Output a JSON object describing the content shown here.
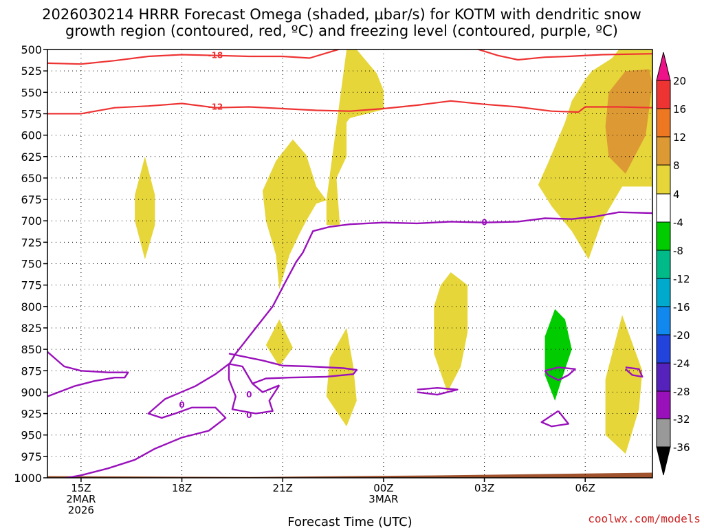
{
  "title": {
    "line1": "2026030214 HRRR Forecast Omega (shaded, μbar/s) for KOTM with dendritic snow",
    "line2": "growth region (contoured, red, ºC) and freezing level (contoured, purple, ºC)"
  },
  "credit": "coolwx.com/models",
  "chart_data": {
    "type": "heatmap",
    "xlabel": "Forecast Time (UTC)",
    "ylabel": "",
    "y_ticks": [
      "500",
      "525",
      "550",
      "575",
      "600",
      "625",
      "650",
      "675",
      "700",
      "725",
      "750",
      "775",
      "800",
      "825",
      "850",
      "875",
      "900",
      "925",
      "950",
      "975",
      "1000"
    ],
    "x_ticks": [
      {
        "hour": 15,
        "lines": [
          "15Z",
          "2MAR",
          "2026"
        ]
      },
      {
        "hour": 18,
        "lines": [
          "18Z"
        ]
      },
      {
        "hour": 21,
        "lines": [
          "21Z"
        ]
      },
      {
        "hour": 24,
        "lines": [
          "00Z",
          "3MAR"
        ]
      },
      {
        "hour": 27,
        "lines": [
          "03Z"
        ]
      },
      {
        "hour": 30,
        "lines": [
          "06Z"
        ]
      }
    ],
    "xlim": [
      14,
      32
    ],
    "ylim": [
      1000,
      500
    ],
    "grid": true,
    "colorbar": {
      "labels": [
        "20",
        "16",
        "12",
        "8",
        "4",
        "-4",
        "-8",
        "-12",
        "-16",
        "-20",
        "-24",
        "-28",
        "-32",
        "-36"
      ],
      "bands": [
        {
          "from": 20,
          "to": 24,
          "color": "#ee1188"
        },
        {
          "from": 16,
          "to": 20,
          "color": "#ee3333"
        },
        {
          "from": 12,
          "to": 16,
          "color": "#ee7722"
        },
        {
          "from": 8,
          "to": 12,
          "color": "#dd9933"
        },
        {
          "from": 4,
          "to": 8,
          "color": "#e6d63a"
        },
        {
          "from": -4,
          "to": 4,
          "color": "#ffffff"
        },
        {
          "from": -8,
          "to": -4,
          "color": "#00cc00"
        },
        {
          "from": -12,
          "to": -8,
          "color": "#00bb88"
        },
        {
          "from": -16,
          "to": -12,
          "color": "#00aacc"
        },
        {
          "from": -20,
          "to": -16,
          "color": "#1188ee"
        },
        {
          "from": -24,
          "to": -20,
          "color": "#2244dd"
        },
        {
          "from": -28,
          "to": -24,
          "color": "#5522bb"
        },
        {
          "from": -32,
          "to": -28,
          "color": "#9911bb"
        },
        {
          "from": -36,
          "to": -32,
          "color": "#999999"
        },
        {
          "from": -40,
          "to": -36,
          "color": "#000000"
        }
      ]
    },
    "shaded_regions": [
      {
        "name": "omega-4-to-8",
        "color": "#e6d63a",
        "value_range": [
          4,
          8
        ],
        "points": [
          [
            16.9,
            625
          ],
          [
            17.2,
            670
          ],
          [
            17.2,
            705
          ],
          [
            16.9,
            745
          ],
          [
            16.6,
            700
          ],
          [
            16.6,
            670
          ]
        ]
      },
      {
        "name": "omega-4-to-8",
        "color": "#e6d63a",
        "value_range": [
          4,
          8
        ],
        "points": [
          [
            22.9,
            500
          ],
          [
            23.2,
            500
          ],
          [
            23.8,
            528
          ],
          [
            24.0,
            548
          ],
          [
            24.0,
            570
          ],
          [
            23.0,
            580
          ],
          [
            22.9,
            585
          ],
          [
            22.9,
            625
          ],
          [
            22.6,
            650
          ],
          [
            22.7,
            705
          ],
          [
            22.3,
            705
          ],
          [
            22.3,
            676
          ],
          [
            22.0,
            660
          ],
          [
            21.7,
            623
          ],
          [
            21.3,
            605
          ],
          [
            20.8,
            630
          ],
          [
            20.4,
            665
          ],
          [
            20.5,
            700
          ],
          [
            20.8,
            740
          ],
          [
            20.9,
            780
          ],
          [
            21.2,
            740
          ],
          [
            21.5,
            715
          ],
          [
            21.7,
            700
          ],
          [
            22.0,
            680
          ],
          [
            22.3,
            676
          ]
        ]
      },
      {
        "name": "omega-4-to-8",
        "color": "#e6d63a",
        "value_range": [
          4,
          8
        ],
        "points": [
          [
            20.9,
            815
          ],
          [
            21.3,
            848
          ],
          [
            20.9,
            870
          ],
          [
            20.5,
            845
          ]
        ]
      },
      {
        "name": "omega-4-to-8",
        "color": "#e6d63a",
        "value_range": [
          4,
          8
        ],
        "points": [
          [
            22.9,
            825
          ],
          [
            23.1,
            870
          ],
          [
            23.2,
            910
          ],
          [
            22.9,
            940
          ],
          [
            22.3,
            905
          ],
          [
            22.4,
            860
          ]
        ]
      },
      {
        "name": "omega-4-to-8",
        "color": "#e6d63a",
        "value_range": [
          4,
          8
        ],
        "points": [
          [
            26.0,
            760
          ],
          [
            26.5,
            775
          ],
          [
            26.5,
            830
          ],
          [
            26.3,
            870
          ],
          [
            25.9,
            900
          ],
          [
            25.5,
            855
          ],
          [
            25.5,
            800
          ],
          [
            25.7,
            775
          ]
        ]
      },
      {
        "name": "omega-4-to-8",
        "color": "#e6d63a",
        "value_range": [
          4,
          8
        ],
        "points": [
          [
            30.2,
            525
          ],
          [
            30.8,
            510
          ],
          [
            31.0,
            500
          ],
          [
            32.0,
            500
          ],
          [
            32.0,
            660
          ],
          [
            31.1,
            660
          ],
          [
            30.5,
            700
          ],
          [
            30.1,
            745
          ],
          [
            29.6,
            712
          ],
          [
            29.0,
            683
          ],
          [
            28.6,
            658
          ],
          [
            28.9,
            632
          ],
          [
            29.4,
            585
          ],
          [
            29.6,
            560
          ],
          [
            30.0,
            535
          ]
        ]
      },
      {
        "name": "omega-4-to-8",
        "color": "#e6d63a",
        "value_range": [
          4,
          8
        ],
        "points": [
          [
            31.1,
            810
          ],
          [
            31.7,
            875
          ],
          [
            31.6,
            920
          ],
          [
            31.2,
            972
          ],
          [
            30.6,
            950
          ],
          [
            30.6,
            885
          ]
        ]
      },
      {
        "name": "omega-8-to-12",
        "color": "#dd9933",
        "value_range": [
          8,
          12
        ],
        "points": [
          [
            31.9,
            523
          ],
          [
            32.0,
            540
          ],
          [
            31.8,
            600
          ],
          [
            31.2,
            645
          ],
          [
            30.7,
            625
          ],
          [
            30.6,
            590
          ],
          [
            30.7,
            550
          ],
          [
            31.2,
            525
          ]
        ]
      },
      {
        "name": "omega-minus-4-to-minus-8",
        "color": "#00cc00",
        "value_range": [
          -8,
          -4
        ],
        "points": [
          [
            29.1,
            803
          ],
          [
            29.4,
            815
          ],
          [
            29.6,
            850
          ],
          [
            29.3,
            885
          ],
          [
            29.1,
            910
          ],
          [
            28.8,
            880
          ],
          [
            28.8,
            835
          ]
        ]
      }
    ],
    "dgz_contours": [
      {
        "label": "-18",
        "color": "#ee3333",
        "points": [
          [
            14.0,
            516
          ],
          [
            15.0,
            517
          ],
          [
            16.0,
            513
          ],
          [
            17.0,
            508
          ],
          [
            18.0,
            506
          ],
          [
            19.0,
            507
          ],
          [
            20.0,
            508
          ],
          [
            21.0,
            508
          ],
          [
            21.8,
            510
          ],
          [
            22.4,
            503
          ],
          [
            23.0,
            496
          ]
        ]
      },
      {
        "label": "-18",
        "color": "#ee3333",
        "points": [
          [
            26.5,
            496
          ],
          [
            27.4,
            507
          ],
          [
            28.0,
            512
          ],
          [
            28.8,
            509
          ],
          [
            29.5,
            508
          ],
          [
            30.5,
            506
          ],
          [
            32.0,
            505
          ]
        ]
      },
      {
        "label": "-12",
        "color": "#ee3333",
        "points": [
          [
            14.0,
            575
          ],
          [
            15.0,
            575
          ],
          [
            16.0,
            568
          ],
          [
            17.0,
            566
          ],
          [
            18.0,
            563
          ],
          [
            19.0,
            568
          ],
          [
            20.0,
            567
          ],
          [
            21.0,
            569
          ],
          [
            22.0,
            571
          ],
          [
            23.0,
            572
          ],
          [
            24.0,
            569
          ],
          [
            25.0,
            565
          ],
          [
            26.0,
            560
          ],
          [
            27.0,
            564
          ],
          [
            28.0,
            567
          ],
          [
            29.0,
            572
          ],
          [
            29.8,
            573
          ],
          [
            30.0,
            567
          ],
          [
            31.0,
            567
          ],
          [
            32.0,
            568
          ]
        ]
      }
    ],
    "freezing_contours": [
      {
        "label": "0",
        "color": "#9911bb",
        "points": [
          [
            14.3,
            1002
          ],
          [
            15.0,
            997
          ],
          [
            15.8,
            989
          ],
          [
            16.6,
            979
          ],
          [
            17.2,
            966
          ],
          [
            18.0,
            953
          ],
          [
            18.8,
            945
          ],
          [
            19.3,
            930
          ],
          [
            19.0,
            918
          ],
          [
            18.3,
            918
          ],
          [
            17.8,
            925
          ],
          [
            17.4,
            930
          ],
          [
            17.0,
            925
          ],
          [
            17.5,
            908
          ],
          [
            18.4,
            893
          ],
          [
            19.0,
            879
          ],
          [
            19.4,
            867
          ],
          [
            19.8,
            870
          ],
          [
            20.1,
            890
          ],
          [
            20.4,
            900
          ],
          [
            20.9,
            892
          ]
        ]
      },
      {
        "label": "0",
        "color": "#9911bb",
        "points": [
          [
            20.9,
            892
          ],
          [
            20.6,
            910
          ],
          [
            20.7,
            922
          ],
          [
            20.2,
            925
          ],
          [
            19.5,
            920
          ],
          [
            19.6,
            905
          ],
          [
            19.4,
            885
          ],
          [
            19.4,
            868
          ],
          [
            19.6,
            855
          ],
          [
            19.9,
            840
          ],
          [
            20.2,
            825
          ],
          [
            20.7,
            800
          ],
          [
            21.1,
            770
          ],
          [
            21.4,
            748
          ],
          [
            21.6,
            737
          ],
          [
            21.9,
            712
          ],
          [
            22.4,
            707
          ],
          [
            23.0,
            704
          ],
          [
            24.0,
            702
          ],
          [
            25.0,
            703
          ],
          [
            26.0,
            701
          ],
          [
            27.0,
            702
          ],
          [
            28.0,
            701
          ],
          [
            28.8,
            697
          ],
          [
            29.6,
            698
          ],
          [
            30.3,
            695
          ],
          [
            31.0,
            690
          ],
          [
            32.0,
            691
          ]
        ]
      },
      {
        "label": "",
        "color": "#9911bb",
        "points": [
          [
            14.0,
            853
          ],
          [
            14.5,
            870
          ],
          [
            15.0,
            875
          ],
          [
            15.8,
            877
          ],
          [
            16.4,
            877
          ],
          [
            16.3,
            883
          ],
          [
            16.0,
            883
          ],
          [
            15.4,
            887
          ],
          [
            14.8,
            893
          ],
          [
            14.0,
            905
          ]
        ]
      },
      {
        "label": "",
        "color": "#9911bb",
        "points": [
          [
            19.4,
            855
          ],
          [
            20.4,
            863
          ],
          [
            21.0,
            869
          ],
          [
            21.8,
            870
          ],
          [
            22.8,
            872
          ],
          [
            23.2,
            874
          ],
          [
            23.1,
            879
          ],
          [
            22.3,
            882
          ],
          [
            21.2,
            883
          ],
          [
            20.5,
            884
          ],
          [
            20.1,
            890
          ]
        ]
      },
      {
        "label": "",
        "color": "#9911bb",
        "points": [
          [
            25.0,
            897
          ],
          [
            25.6,
            895
          ],
          [
            26.2,
            897
          ],
          [
            25.6,
            903
          ],
          [
            25.0,
            900
          ]
        ]
      },
      {
        "label": "",
        "color": "#9911bb",
        "points": [
          [
            28.8,
            875
          ],
          [
            29.2,
            871
          ],
          [
            29.7,
            873
          ],
          [
            29.5,
            880
          ],
          [
            29.2,
            886
          ],
          [
            28.9,
            880
          ],
          [
            28.8,
            875
          ]
        ]
      },
      {
        "label": "",
        "color": "#9911bb",
        "points": [
          [
            29.2,
            922
          ],
          [
            29.5,
            937
          ],
          [
            29.0,
            940
          ],
          [
            28.7,
            935
          ],
          [
            29.2,
            922
          ]
        ]
      },
      {
        "label": "",
        "color": "#9911bb",
        "points": [
          [
            31.2,
            871
          ],
          [
            31.6,
            873
          ],
          [
            31.7,
            882
          ],
          [
            31.4,
            880
          ],
          [
            31.2,
            873
          ]
        ]
      }
    ],
    "contour_labels": [
      {
        "text": "-18",
        "x": 19.0,
        "y": 507,
        "color": "#ee3333"
      },
      {
        "text": "-12",
        "x": 19.0,
        "y": 567,
        "color": "#ee3333"
      },
      {
        "text": "0",
        "x": 18.0,
        "y": 915,
        "color": "#9911bb"
      },
      {
        "text": "0",
        "x": 20.0,
        "y": 903,
        "color": "#9911bb"
      },
      {
        "text": "0",
        "x": 20.0,
        "y": 927,
        "color": "#9911bb"
      },
      {
        "text": "0",
        "x": 27.0,
        "y": 702,
        "color": "#9911bb"
      }
    ],
    "terrain": {
      "color": "#a0522d",
      "points": [
        [
          14.0,
          998
        ],
        [
          20.0,
          999
        ],
        [
          26.0,
          997
        ],
        [
          32.0,
          994
        ]
      ]
    }
  }
}
